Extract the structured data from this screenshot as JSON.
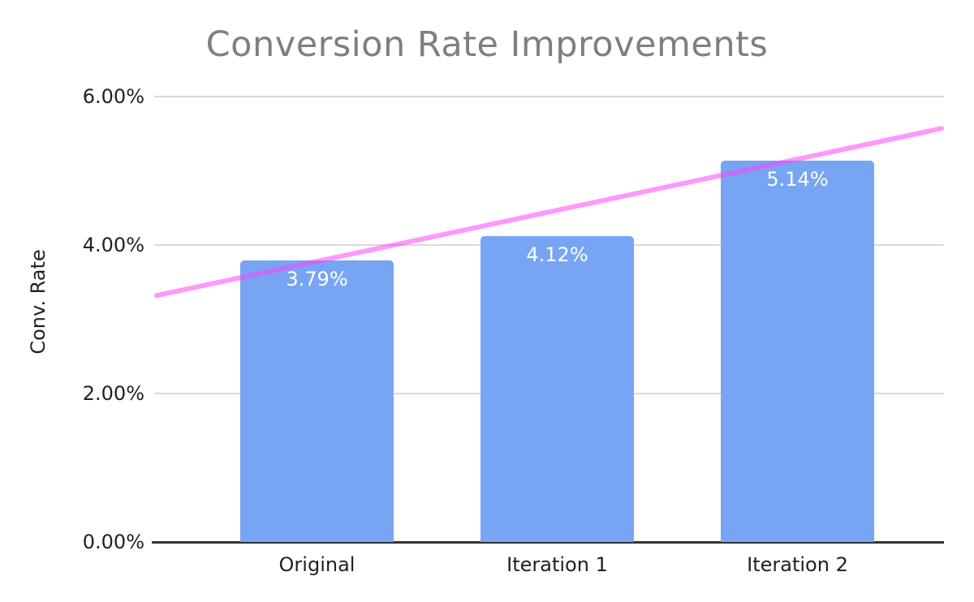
{
  "chart_data": {
    "type": "bar",
    "title": "Conversion Rate Improvements",
    "ylabel": "Conv. Rate",
    "xlabel": "",
    "categories": [
      "Original",
      "Iteration 1",
      "Iteration 2"
    ],
    "values": [
      3.79,
      4.12,
      5.14
    ],
    "data_labels": [
      "3.79%",
      "4.12%",
      "5.14%"
    ],
    "ylim": [
      0,
      6
    ],
    "yticks": {
      "values": [
        0,
        2,
        4,
        6
      ],
      "labels": [
        "0.00%",
        "2.00%",
        "4.00%",
        "6.00%"
      ]
    },
    "grid": "horizontal-only",
    "legend": "none",
    "trendline": {
      "type": "linear",
      "start_value": 3.32,
      "end_value": 5.57
    },
    "colors": {
      "bar": "#77a5f3",
      "trendline": "#fc46f8",
      "trendline_opacity": 0.55,
      "gridline": "#d9d9d9",
      "axis_line": "#333333",
      "title_text": "#7f7f7f",
      "tick_text": "#202124",
      "bar_label_text": "#ffffff"
    }
  }
}
